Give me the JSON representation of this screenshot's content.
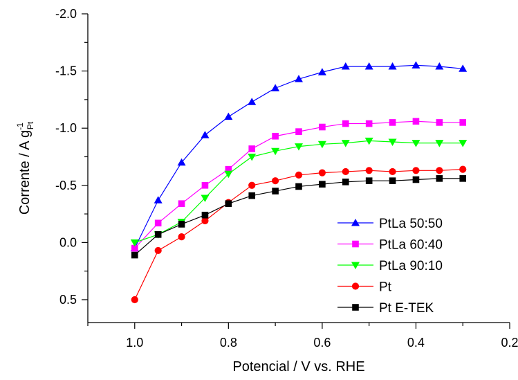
{
  "chart_data": {
    "type": "line",
    "xlabel": "Potencial / V vs. RHE",
    "ylabel": {
      "main": "Corrente / A g",
      "superscript": "-1",
      "subscript": "Pt"
    },
    "xlim": [
      1.1,
      0.2
    ],
    "ylim": [
      0.7,
      -2.0
    ],
    "x_ticks": [
      1.0,
      0.8,
      0.6,
      0.4,
      0.2
    ],
    "x_tick_labels": [
      "1.0",
      "0.8",
      "0.6",
      "0.4",
      "0.2"
    ],
    "y_ticks": [
      -2.0,
      -1.5,
      -1.0,
      -0.5,
      0.0,
      0.5
    ],
    "y_tick_labels": [
      "-2.0",
      "-1.5",
      "-1.0",
      "-0.5",
      "0.0",
      "0.5"
    ],
    "grid": false,
    "legend_position": "bottom-right",
    "x": [
      1.0,
      0.95,
      0.9,
      0.85,
      0.8,
      0.75,
      0.7,
      0.65,
      0.6,
      0.55,
      0.5,
      0.45,
      0.4,
      0.35,
      0.3
    ],
    "series": [
      {
        "name": "PtLa 50:50",
        "color": "#0000ff",
        "marker": "triangle-up",
        "values": [
          0.05,
          -0.37,
          -0.7,
          -0.94,
          -1.1,
          -1.23,
          -1.35,
          -1.43,
          -1.49,
          -1.54,
          -1.54,
          -1.54,
          -1.55,
          -1.54,
          -1.52
        ]
      },
      {
        "name": "PtLa 60:40",
        "color": "#ff00ff",
        "marker": "square",
        "values": [
          0.05,
          -0.17,
          -0.34,
          -0.5,
          -0.64,
          -0.82,
          -0.93,
          -0.97,
          -1.01,
          -1.04,
          -1.04,
          -1.05,
          -1.06,
          -1.05,
          -1.05
        ]
      },
      {
        "name": "PtLa 90:10",
        "color": "#00ff00",
        "marker": "triangle-down",
        "values": [
          0.0,
          -0.07,
          -0.18,
          -0.39,
          -0.6,
          -0.75,
          -0.8,
          -0.84,
          -0.86,
          -0.87,
          -0.89,
          -0.88,
          -0.87,
          -0.87,
          -0.87
        ]
      },
      {
        "name": "Pt",
        "color": "#ff0000",
        "marker": "circle",
        "values": [
          0.5,
          0.07,
          -0.05,
          -0.19,
          -0.35,
          -0.5,
          -0.54,
          -0.59,
          -0.61,
          -0.62,
          -0.63,
          -0.62,
          -0.63,
          -0.63,
          -0.64
        ]
      },
      {
        "name": "Pt E-TEK",
        "color": "#000000",
        "marker": "square",
        "values": [
          0.11,
          -0.07,
          -0.16,
          -0.24,
          -0.34,
          -0.41,
          -0.45,
          -0.49,
          -0.51,
          -0.53,
          -0.54,
          -0.54,
          -0.55,
          -0.56,
          -0.56
        ]
      }
    ]
  }
}
